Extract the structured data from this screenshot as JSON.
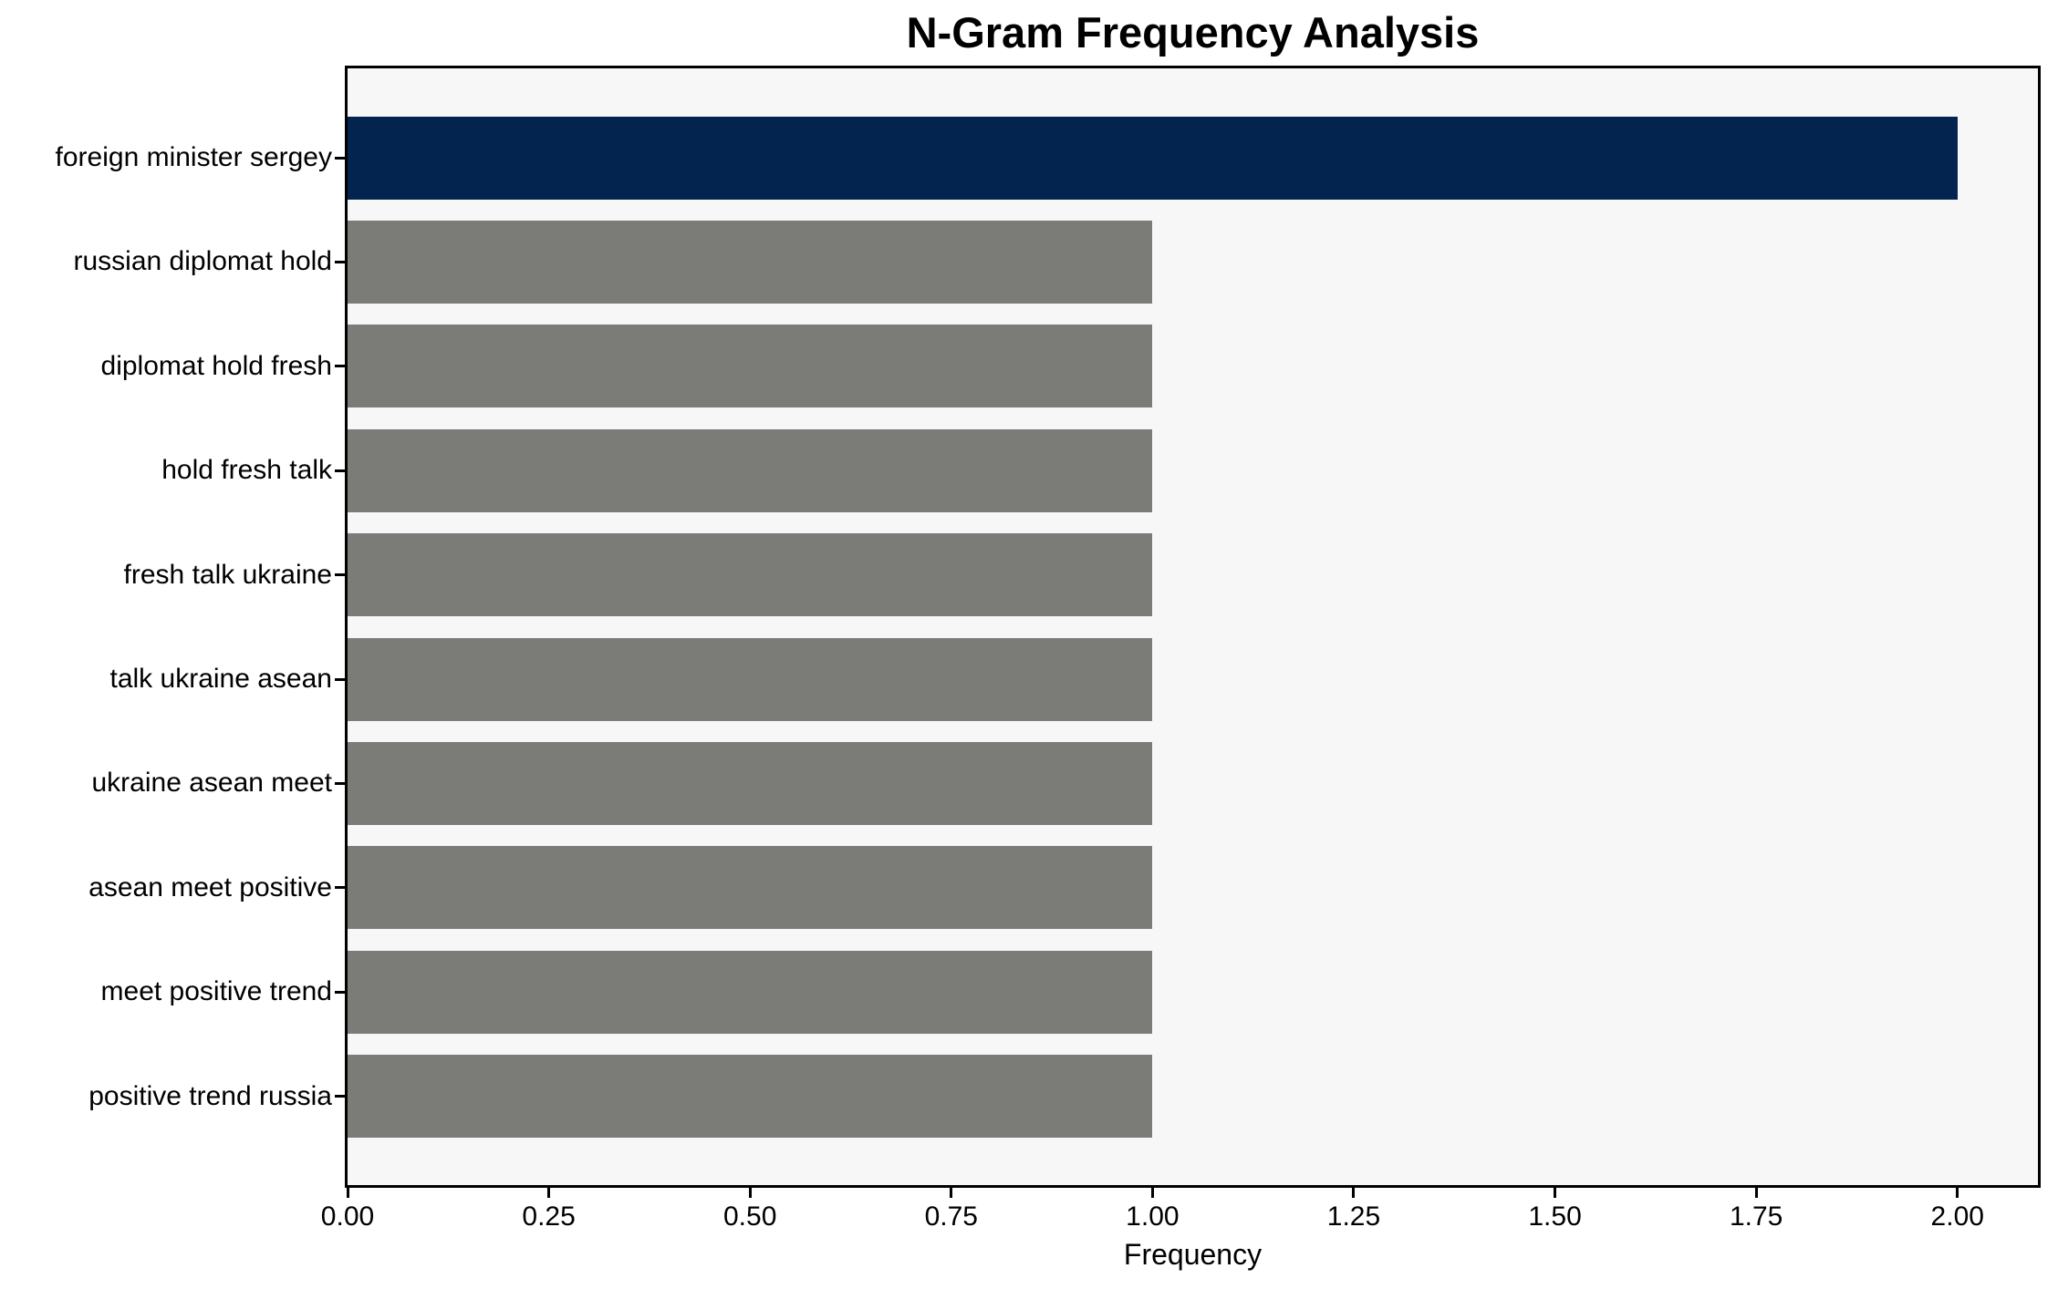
{
  "chart_data": {
    "type": "bar",
    "orientation": "horizontal",
    "title": "N-Gram Frequency Analysis",
    "xlabel": "Frequency",
    "ylabel": "",
    "categories": [
      "foreign minister sergey",
      "russian diplomat hold",
      "diplomat hold fresh",
      "hold fresh talk",
      "fresh talk ukraine",
      "talk ukraine asean",
      "ukraine asean meet",
      "asean meet positive",
      "meet positive trend",
      "positive trend russia"
    ],
    "values": [
      2,
      1,
      1,
      1,
      1,
      1,
      1,
      1,
      1,
      1
    ],
    "bar_colors": [
      "#02244e",
      "#7b7b78",
      "#7b7b78",
      "#7b7b78",
      "#7b7b78",
      "#7b7b78",
      "#7b7b78",
      "#7b7b78",
      "#7b7b78",
      "#7b7b78"
    ],
    "highlight_color": "#02244e",
    "default_bar_color": "#7b7b78",
    "xlim": [
      0,
      2.1
    ],
    "xticks": [
      {
        "value": 0.0,
        "label": "0.00"
      },
      {
        "value": 0.25,
        "label": "0.25"
      },
      {
        "value": 0.5,
        "label": "0.50"
      },
      {
        "value": 0.75,
        "label": "0.75"
      },
      {
        "value": 1.0,
        "label": "1.00"
      },
      {
        "value": 1.25,
        "label": "1.25"
      },
      {
        "value": 1.5,
        "label": "1.50"
      },
      {
        "value": 1.75,
        "label": "1.75"
      },
      {
        "value": 2.0,
        "label": "2.00"
      }
    ],
    "grid": false,
    "legend": null,
    "plot_background": "#f7f7f7",
    "figure_background": "#ffffff",
    "axis_color": "#000000",
    "text_color": "#000000"
  }
}
